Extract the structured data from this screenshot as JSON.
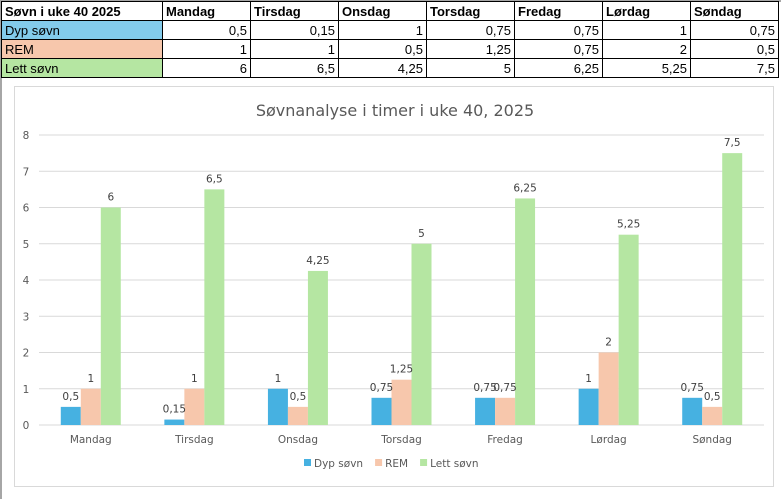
{
  "table": {
    "header": [
      "Søvn i uke 40 2025",
      "Mandag",
      "Tirsdag",
      "Onsdag",
      "Torsdag",
      "Fredag",
      "Lørdag",
      "Søndag"
    ],
    "rows": [
      {
        "label": "Dyp søvn",
        "color": "#83cbeb",
        "values": [
          "0,5",
          "0,15",
          "1",
          "0,75",
          "0,75",
          "1",
          "0,75"
        ]
      },
      {
        "label": "REM",
        "color": "#f7c7ac",
        "values": [
          "1",
          "1",
          "0,5",
          "1,25",
          "0,75",
          "2",
          "0,5"
        ]
      },
      {
        "label": "Lett søvn",
        "color": "#b5e6a2",
        "values": [
          "6",
          "6,5",
          "4,25",
          "5",
          "6,25",
          "5,25",
          "7,5"
        ]
      }
    ]
  },
  "chart_data": {
    "type": "bar",
    "title": "Søvnanalyse i timer i uke 40, 2025",
    "xlabel": "",
    "ylabel": "",
    "categories": [
      "Mandag",
      "Tirsdag",
      "Onsdag",
      "Torsdag",
      "Fredag",
      "Lørdag",
      "Søndag"
    ],
    "series": [
      {
        "name": "Dyp søvn",
        "color": "#46b1e1",
        "values": [
          0.5,
          0.15,
          1,
          0.75,
          0.75,
          1,
          0.75
        ],
        "labels": [
          "0,5",
          "0,15",
          "1",
          "0,75",
          "0,75",
          "1",
          "0,75"
        ]
      },
      {
        "name": "REM",
        "color": "#f7c7ac",
        "values": [
          1,
          1,
          0.5,
          1.25,
          0.75,
          2,
          0.5
        ],
        "labels": [
          "1",
          "1",
          "0,5",
          "1,25",
          "0,75",
          "2",
          "0,5"
        ]
      },
      {
        "name": "Lett søvn",
        "color": "#b5e6a2",
        "values": [
          6,
          6.5,
          4.25,
          5,
          6.25,
          5.25,
          7.5
        ],
        "labels": [
          "6",
          "6,5",
          "4,25",
          "5",
          "6,25",
          "5,25",
          "7,5"
        ]
      }
    ],
    "ylim": [
      0,
      8
    ],
    "yticks": [
      "0",
      "1",
      "2",
      "3",
      "4",
      "5",
      "6",
      "7",
      "8"
    ],
    "grid": true,
    "legend": "bottom",
    "gridColor": "#d9d9d9"
  }
}
